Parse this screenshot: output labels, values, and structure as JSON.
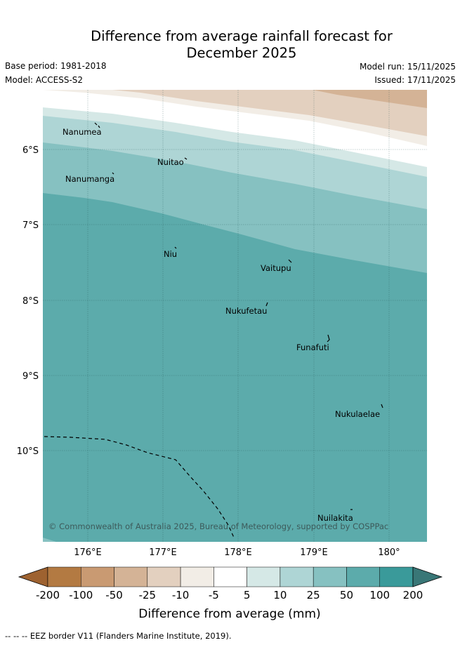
{
  "title": {
    "line1": "Difference from average rainfall forecast for",
    "line2": "December 2025"
  },
  "meta": {
    "base_period": "Base period: 1981-2018",
    "model": "Model: ACCESS-S2",
    "model_run": "Model run: 15/11/2025",
    "issued": "Issued: 17/11/2025"
  },
  "map": {
    "latitude_labels": [
      "6°S",
      "7°S",
      "8°S",
      "9°S",
      "10°S"
    ],
    "longitude_labels": [
      "176°E",
      "177°E",
      "178°E",
      "179°E",
      "180°"
    ],
    "islands": [
      {
        "name": "Nanumea"
      },
      {
        "name": "Nuitao"
      },
      {
        "name": "Nanumanga"
      },
      {
        "name": "Niu"
      },
      {
        "name": "Vaitupu"
      },
      {
        "name": "Nukufetau"
      },
      {
        "name": "Funafuti"
      },
      {
        "name": "Nukulaelae"
      },
      {
        "name": "Nuilakita"
      }
    ],
    "copyright": "© Commonwealth of Australia 2025, Bureau of Meteorology, supported by COSPPac"
  },
  "colorbar": {
    "label": "Difference from average (mm)",
    "ticks": [
      "-200",
      "-100",
      "-50",
      "-25",
      "-10",
      "-5",
      "5",
      "10",
      "25",
      "50",
      "100",
      "200"
    ],
    "colors": [
      "#9e6230",
      "#b37a42",
      "#c99a72",
      "#d4b396",
      "#e3d0bf",
      "#f2ede6",
      "#ffffff",
      "#d5e8e6",
      "#aed5d5",
      "#86c1c1",
      "#5cabab",
      "#3a9a9a",
      "#397777"
    ]
  },
  "footer": {
    "eez_legend": "-- -- -- EEZ border V11 (Flanders Marine Institute, 2019)."
  }
}
